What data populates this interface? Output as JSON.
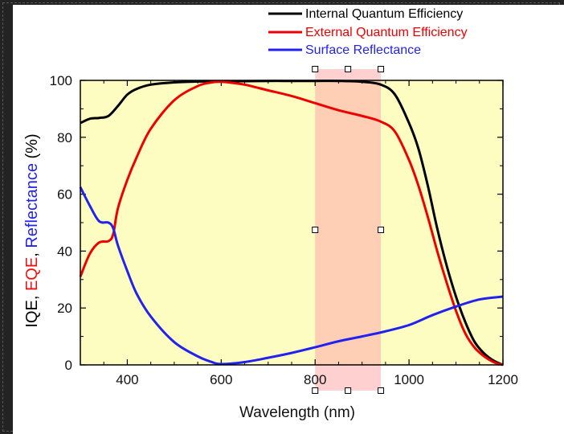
{
  "chart_data": {
    "type": "line",
    "xlabel": "Wavelength (nm)",
    "ylabel_parts": [
      {
        "text": "IQE",
        "color": "#000000"
      },
      {
        "text": ", ",
        "color": "#000000"
      },
      {
        "text": "EQE",
        "color": "#ee1111"
      },
      {
        "text": ", ",
        "color": "#000000"
      },
      {
        "text": "Reflectance",
        "color": "#2222ee"
      },
      {
        "text": " (%)",
        "color": "#000000"
      }
    ],
    "xlim": [
      300,
      1200
    ],
    "ylim": [
      0,
      100
    ],
    "x_ticks": [
      400,
      600,
      800,
      1000,
      1200
    ],
    "x_tick_labels": [
      "400",
      "600",
      "800",
      "1000",
      "1200"
    ],
    "y_ticks": [
      0,
      20,
      40,
      60,
      80,
      100
    ],
    "y_tick_labels": [
      "0",
      "20",
      "40",
      "60",
      "80",
      "100"
    ],
    "plot_background": "#fdfdc2",
    "highlight_band": {
      "x_range": [
        800,
        940
      ],
      "color": "#ffaaaa",
      "opacity": 0.55
    },
    "legend_position": "top",
    "series": [
      {
        "name": "Internal Quantum Efficiency",
        "color": "#000000",
        "x": [
          300,
          320,
          340,
          360,
          380,
          400,
          420,
          450,
          500,
          550,
          600,
          650,
          700,
          750,
          800,
          850,
          900,
          940,
          970,
          1000,
          1020,
          1040,
          1060,
          1080,
          1100,
          1120,
          1140,
          1160,
          1180,
          1200
        ],
        "y": [
          85,
          86.5,
          86.8,
          87.5,
          91,
          95,
          97,
          98.5,
          99.3,
          99.6,
          99.7,
          99.7,
          99.8,
          99.8,
          99.8,
          99.8,
          99.5,
          98.5,
          95,
          85,
          76,
          63,
          48,
          35,
          24,
          15,
          8,
          4,
          1.5,
          0
        ]
      },
      {
        "name": "External Quantum Efficiency",
        "color": "#ee0000",
        "x": [
          300,
          320,
          340,
          360,
          370,
          380,
          400,
          420,
          450,
          500,
          550,
          580,
          600,
          620,
          650,
          700,
          750,
          800,
          850,
          900,
          940,
          970,
          1000,
          1020,
          1040,
          1060,
          1080,
          1100,
          1120,
          1140,
          1160,
          1180,
          1200
        ],
        "y": [
          31,
          39,
          43,
          43.5,
          46,
          55,
          65,
          73,
          83,
          93,
          98,
          99.3,
          99.5,
          99.2,
          98.5,
          96.5,
          94.5,
          92,
          89.5,
          87.5,
          85.5,
          82,
          72,
          63,
          52,
          40,
          29,
          19,
          11,
          6,
          3,
          1,
          0
        ]
      },
      {
        "name": "Surface Reflectance",
        "color": "#2222ee",
        "x": [
          300,
          320,
          340,
          360,
          370,
          380,
          400,
          420,
          450,
          500,
          550,
          580,
          600,
          650,
          700,
          750,
          800,
          850,
          900,
          950,
          1000,
          1050,
          1100,
          1150,
          1200
        ],
        "y": [
          62.5,
          56,
          50.5,
          50,
          48,
          42,
          33,
          25,
          17,
          8,
          3,
          1,
          0.3,
          1,
          2.5,
          4.2,
          6.2,
          8.3,
          10,
          11.8,
          14,
          17.5,
          20.5,
          23,
          24
        ]
      }
    ]
  }
}
